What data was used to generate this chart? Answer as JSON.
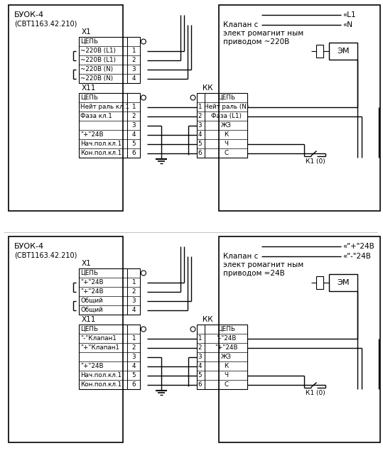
{
  "bg_color": "#ffffff",
  "line_color": "#000000",
  "diagram1": {
    "buok_title": [
      "БУОК-4",
      "(СВТ1163.42.210)"
    ],
    "x1_rows": [
      [
        "ЦЕПЬ",
        ""
      ],
      [
        "~220В (L1)",
        "1"
      ],
      [
        "~220В (L1)",
        "2"
      ],
      [
        "~220В (N)",
        "3"
      ],
      [
        "~220В (N)",
        "4"
      ]
    ],
    "x11_rows": [
      [
        "ЦЕПЬ",
        ""
      ],
      [
        "Нейт раль кл.1",
        "1"
      ],
      [
        "Фаза кл.1",
        "2"
      ],
      [
        "",
        "3"
      ],
      [
        "\"+\"24В",
        "4"
      ],
      [
        "Нач.пол.кл.1",
        "5"
      ],
      [
        "Кон.пол.кл.1",
        "6"
      ]
    ],
    "kk_rows": [
      [
        "",
        "ЦЕПЬ"
      ],
      [
        "1",
        "Нейт раль (N)"
      ],
      [
        "2",
        "Фаза (L1)"
      ],
      [
        "3",
        "ЖЗ"
      ],
      [
        "4",
        "К"
      ],
      [
        "5",
        "Ч"
      ],
      [
        "6",
        "С"
      ]
    ],
    "klap_title": [
      "Клапан с",
      "элект ромагнит ным",
      "приводом ~220В"
    ],
    "wire1": "«L1",
    "wire2": "«N",
    "k1_label": "К1 (0)"
  },
  "diagram2": {
    "buok_title": [
      "БУОК-4",
      "(СВТ1163.42.210)"
    ],
    "x1_rows": [
      [
        "ЦЕПЬ",
        ""
      ],
      [
        "\"+\"24В",
        "1"
      ],
      [
        "\"+\"24В",
        "2"
      ],
      [
        "Общий",
        "3"
      ],
      [
        "Общий",
        "4"
      ]
    ],
    "x11_rows": [
      [
        "ЦЕПЬ",
        ""
      ],
      [
        "\"-\"Клапан1",
        "1"
      ],
      [
        "\"+\"Клапан1",
        "2"
      ],
      [
        "",
        "3"
      ],
      [
        "\"+\"24В",
        "4"
      ],
      [
        "Нач.пол.кл.1",
        "5"
      ],
      [
        "Кон.пол.кл.1",
        "6"
      ]
    ],
    "kk_rows": [
      [
        "",
        "ЦЕПЬ"
      ],
      [
        "1",
        "\"-\"24В"
      ],
      [
        "2",
        "\"+\"24В"
      ],
      [
        "3",
        "ЖЗ"
      ],
      [
        "4",
        "К"
      ],
      [
        "5",
        "Ч"
      ],
      [
        "6",
        "С"
      ]
    ],
    "klap_title": [
      "Клапан с",
      "элект ромагнит ным",
      "приводом =24В"
    ],
    "wire1": "«\"+\"24В",
    "wire2": "«\"-\"24В",
    "k1_label": "К1 (0)"
  }
}
